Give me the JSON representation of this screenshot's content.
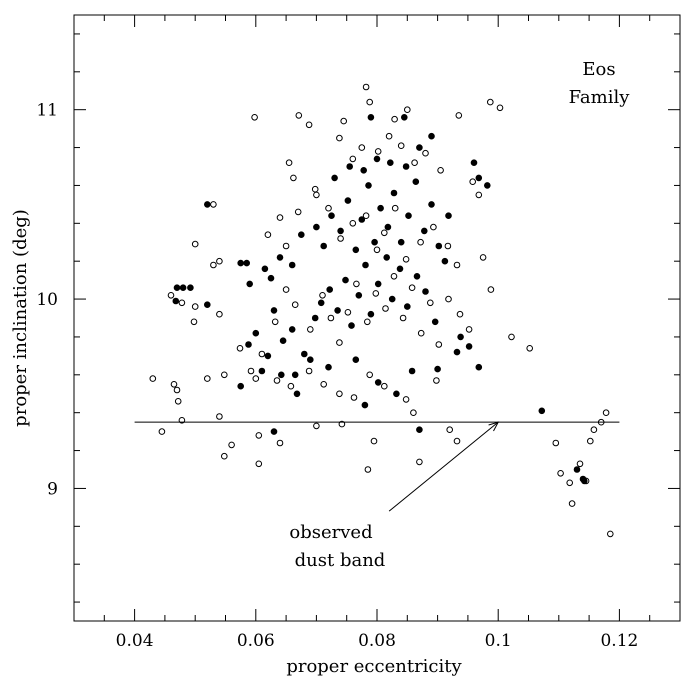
{
  "chart_data": {
    "type": "scatter",
    "title": "",
    "xlabel": "proper eccentricity",
    "ylabel": "proper inclination (deg)",
    "xlim": [
      0.03,
      0.13
    ],
    "ylim": [
      8.3,
      11.5
    ],
    "x_ticks": [
      {
        "value": 0.04,
        "label": "0.04"
      },
      {
        "value": 0.06,
        "label": "0.06"
      },
      {
        "value": 0.08,
        "label": "0.08"
      },
      {
        "value": 0.1,
        "label": "0.1"
      },
      {
        "value": 0.12,
        "label": "0.12"
      }
    ],
    "y_ticks": [
      {
        "value": 9,
        "label": "9"
      },
      {
        "value": 10,
        "label": "10"
      },
      {
        "value": 11,
        "label": "11"
      }
    ],
    "family_label": [
      "Eos",
      "Family"
    ],
    "dust_band": {
      "y": 9.35,
      "x_range": [
        0.04,
        0.12
      ],
      "label": [
        "observed",
        "dust band"
      ],
      "arrow_from": [
        0.082,
        8.88
      ],
      "arrow_to": [
        0.1,
        9.35
      ]
    },
    "series": [
      {
        "name": "open",
        "marker": "open-circle",
        "points": [
          [
            0.0598,
            10.96
          ],
          [
            0.0671,
            10.97
          ],
          [
            0.0782,
            11.12
          ],
          [
            0.0788,
            11.04
          ],
          [
            0.0829,
            10.95
          ],
          [
            0.085,
            11.0
          ],
          [
            0.0935,
            10.97
          ],
          [
            0.0987,
            11.04
          ],
          [
            0.1003,
            11.01
          ],
          [
            0.0775,
            10.8
          ],
          [
            0.076,
            10.74
          ],
          [
            0.0738,
            10.85
          ],
          [
            0.0688,
            10.92
          ],
          [
            0.0745,
            10.94
          ],
          [
            0.0802,
            10.78
          ],
          [
            0.082,
            10.86
          ],
          [
            0.084,
            10.81
          ],
          [
            0.0862,
            10.72
          ],
          [
            0.088,
            10.77
          ],
          [
            0.0905,
            10.68
          ],
          [
            0.0958,
            10.62
          ],
          [
            0.0968,
            10.55
          ],
          [
            0.0655,
            10.72
          ],
          [
            0.0662,
            10.64
          ],
          [
            0.05,
            10.29
          ],
          [
            0.053,
            10.18
          ],
          [
            0.054,
            10.2
          ],
          [
            0.053,
            10.5
          ],
          [
            0.064,
            10.43
          ],
          [
            0.062,
            10.34
          ],
          [
            0.065,
            10.28
          ],
          [
            0.067,
            10.46
          ],
          [
            0.07,
            10.55
          ],
          [
            0.0698,
            10.58
          ],
          [
            0.072,
            10.48
          ],
          [
            0.074,
            10.32
          ],
          [
            0.076,
            10.4
          ],
          [
            0.0782,
            10.44
          ],
          [
            0.08,
            10.26
          ],
          [
            0.0812,
            10.35
          ],
          [
            0.083,
            10.48
          ],
          [
            0.0848,
            10.21
          ],
          [
            0.0872,
            10.3
          ],
          [
            0.0893,
            10.38
          ],
          [
            0.0917,
            10.28
          ],
          [
            0.0932,
            10.18
          ],
          [
            0.0975,
            10.22
          ],
          [
            0.046,
            10.02
          ],
          [
            0.0478,
            9.98
          ],
          [
            0.05,
            9.96
          ],
          [
            0.054,
            9.92
          ],
          [
            0.0574,
            9.74
          ],
          [
            0.0592,
            9.62
          ],
          [
            0.061,
            9.71
          ],
          [
            0.0632,
            9.88
          ],
          [
            0.065,
            10.05
          ],
          [
            0.0665,
            9.97
          ],
          [
            0.069,
            9.84
          ],
          [
            0.071,
            10.02
          ],
          [
            0.0724,
            9.9
          ],
          [
            0.0738,
            9.77
          ],
          [
            0.0752,
            9.93
          ],
          [
            0.0766,
            10.08
          ],
          [
            0.0784,
            9.88
          ],
          [
            0.0798,
            10.03
          ],
          [
            0.0814,
            9.95
          ],
          [
            0.0828,
            10.12
          ],
          [
            0.0843,
            9.9
          ],
          [
            0.0858,
            10.06
          ],
          [
            0.0873,
            9.82
          ],
          [
            0.0888,
            9.98
          ],
          [
            0.0902,
            9.76
          ],
          [
            0.0918,
            10.0
          ],
          [
            0.0937,
            9.92
          ],
          [
            0.0952,
            9.84
          ],
          [
            0.0988,
            10.05
          ],
          [
            0.1022,
            9.8
          ],
          [
            0.1052,
            9.74
          ],
          [
            0.0498,
            9.88
          ],
          [
            0.043,
            9.58
          ],
          [
            0.0465,
            9.55
          ],
          [
            0.047,
            9.52
          ],
          [
            0.0472,
            9.46
          ],
          [
            0.052,
            9.58
          ],
          [
            0.0548,
            9.6
          ],
          [
            0.06,
            9.58
          ],
          [
            0.0635,
            9.57
          ],
          [
            0.0658,
            9.54
          ],
          [
            0.0688,
            9.62
          ],
          [
            0.0712,
            9.55
          ],
          [
            0.0738,
            9.5
          ],
          [
            0.0762,
            9.48
          ],
          [
            0.0788,
            9.6
          ],
          [
            0.0812,
            9.54
          ],
          [
            0.0848,
            9.47
          ],
          [
            0.086,
            9.4
          ],
          [
            0.0898,
            9.57
          ],
          [
            0.0478,
            9.36
          ],
          [
            0.054,
            9.38
          ],
          [
            0.0445,
            9.3
          ],
          [
            0.056,
            9.23
          ],
          [
            0.0605,
            9.28
          ],
          [
            0.064,
            9.24
          ],
          [
            0.07,
            9.33
          ],
          [
            0.0742,
            9.34
          ],
          [
            0.0795,
            9.25
          ],
          [
            0.092,
            9.31
          ],
          [
            0.0932,
            9.25
          ],
          [
            0.0548,
            9.17
          ],
          [
            0.0605,
            9.13
          ],
          [
            0.0785,
            9.1
          ],
          [
            0.087,
            9.14
          ],
          [
            0.1095,
            9.24
          ],
          [
            0.1103,
            9.08
          ],
          [
            0.1118,
            9.03
          ],
          [
            0.1122,
            8.92
          ],
          [
            0.1135,
            9.13
          ],
          [
            0.1145,
            9.04
          ],
          [
            0.1152,
            9.25
          ],
          [
            0.1158,
            9.31
          ],
          [
            0.117,
            9.35
          ],
          [
            0.1178,
            9.4
          ],
          [
            0.1185,
            8.76
          ]
        ]
      },
      {
        "name": "filled",
        "marker": "filled-circle",
        "points": [
          [
            0.047,
            10.06
          ],
          [
            0.048,
            10.06
          ],
          [
            0.0492,
            10.06
          ],
          [
            0.0468,
            9.99
          ],
          [
            0.052,
            9.97
          ],
          [
            0.052,
            10.5
          ],
          [
            0.0575,
            10.19
          ],
          [
            0.0585,
            10.19
          ],
          [
            0.059,
            10.08
          ],
          [
            0.0615,
            10.16
          ],
          [
            0.0625,
            10.11
          ],
          [
            0.064,
            10.22
          ],
          [
            0.066,
            10.18
          ],
          [
            0.0675,
            10.34
          ],
          [
            0.0588,
            9.76
          ],
          [
            0.06,
            9.82
          ],
          [
            0.062,
            9.7
          ],
          [
            0.063,
            9.94
          ],
          [
            0.0645,
            9.78
          ],
          [
            0.066,
            9.84
          ],
          [
            0.068,
            9.71
          ],
          [
            0.0698,
            9.9
          ],
          [
            0.0708,
            9.98
          ],
          [
            0.0722,
            10.05
          ],
          [
            0.0735,
            9.94
          ],
          [
            0.0748,
            10.1
          ],
          [
            0.0758,
            9.86
          ],
          [
            0.077,
            10.02
          ],
          [
            0.0781,
            10.18
          ],
          [
            0.079,
            9.92
          ],
          [
            0.0802,
            10.08
          ],
          [
            0.0816,
            10.22
          ],
          [
            0.0825,
            10.0
          ],
          [
            0.0838,
            10.16
          ],
          [
            0.085,
            9.96
          ],
          [
            0.0866,
            10.12
          ],
          [
            0.088,
            10.04
          ],
          [
            0.0896,
            9.88
          ],
          [
            0.0912,
            10.2
          ],
          [
            0.0938,
            9.8
          ],
          [
            0.0968,
            9.64
          ],
          [
            0.0952,
            9.75
          ],
          [
            0.07,
            10.38
          ],
          [
            0.0712,
            10.28
          ],
          [
            0.0725,
            10.44
          ],
          [
            0.074,
            10.36
          ],
          [
            0.0752,
            10.52
          ],
          [
            0.0765,
            10.26
          ],
          [
            0.0775,
            10.42
          ],
          [
            0.0786,
            10.6
          ],
          [
            0.0796,
            10.3
          ],
          [
            0.0806,
            10.48
          ],
          [
            0.0818,
            10.38
          ],
          [
            0.0828,
            10.56
          ],
          [
            0.084,
            10.3
          ],
          [
            0.0852,
            10.44
          ],
          [
            0.0864,
            10.62
          ],
          [
            0.0878,
            10.36
          ],
          [
            0.089,
            10.5
          ],
          [
            0.0902,
            10.28
          ],
          [
            0.0918,
            10.44
          ],
          [
            0.073,
            10.64
          ],
          [
            0.0755,
            10.7
          ],
          [
            0.0778,
            10.68
          ],
          [
            0.08,
            10.74
          ],
          [
            0.0822,
            10.72
          ],
          [
            0.0848,
            10.7
          ],
          [
            0.087,
            10.8
          ],
          [
            0.089,
            10.86
          ],
          [
            0.096,
            10.72
          ],
          [
            0.0968,
            10.64
          ],
          [
            0.0982,
            10.6
          ],
          [
            0.079,
            10.96
          ],
          [
            0.0845,
            10.96
          ],
          [
            0.0575,
            9.54
          ],
          [
            0.061,
            9.62
          ],
          [
            0.0642,
            9.6
          ],
          [
            0.0668,
            9.5
          ],
          [
            0.069,
            9.68
          ],
          [
            0.072,
            9.64
          ],
          [
            0.0765,
            9.68
          ],
          [
            0.078,
            9.44
          ],
          [
            0.0802,
            9.56
          ],
          [
            0.0832,
            9.5
          ],
          [
            0.0858,
            9.62
          ],
          [
            0.09,
            9.63
          ],
          [
            0.0932,
            9.72
          ],
          [
            0.0665,
            9.6
          ],
          [
            0.063,
            9.3
          ],
          [
            0.087,
            9.31
          ],
          [
            0.1072,
            9.41
          ],
          [
            0.113,
            9.1
          ],
          [
            0.114,
            9.05
          ],
          [
            0.1142,
            9.04
          ]
        ]
      }
    ]
  }
}
